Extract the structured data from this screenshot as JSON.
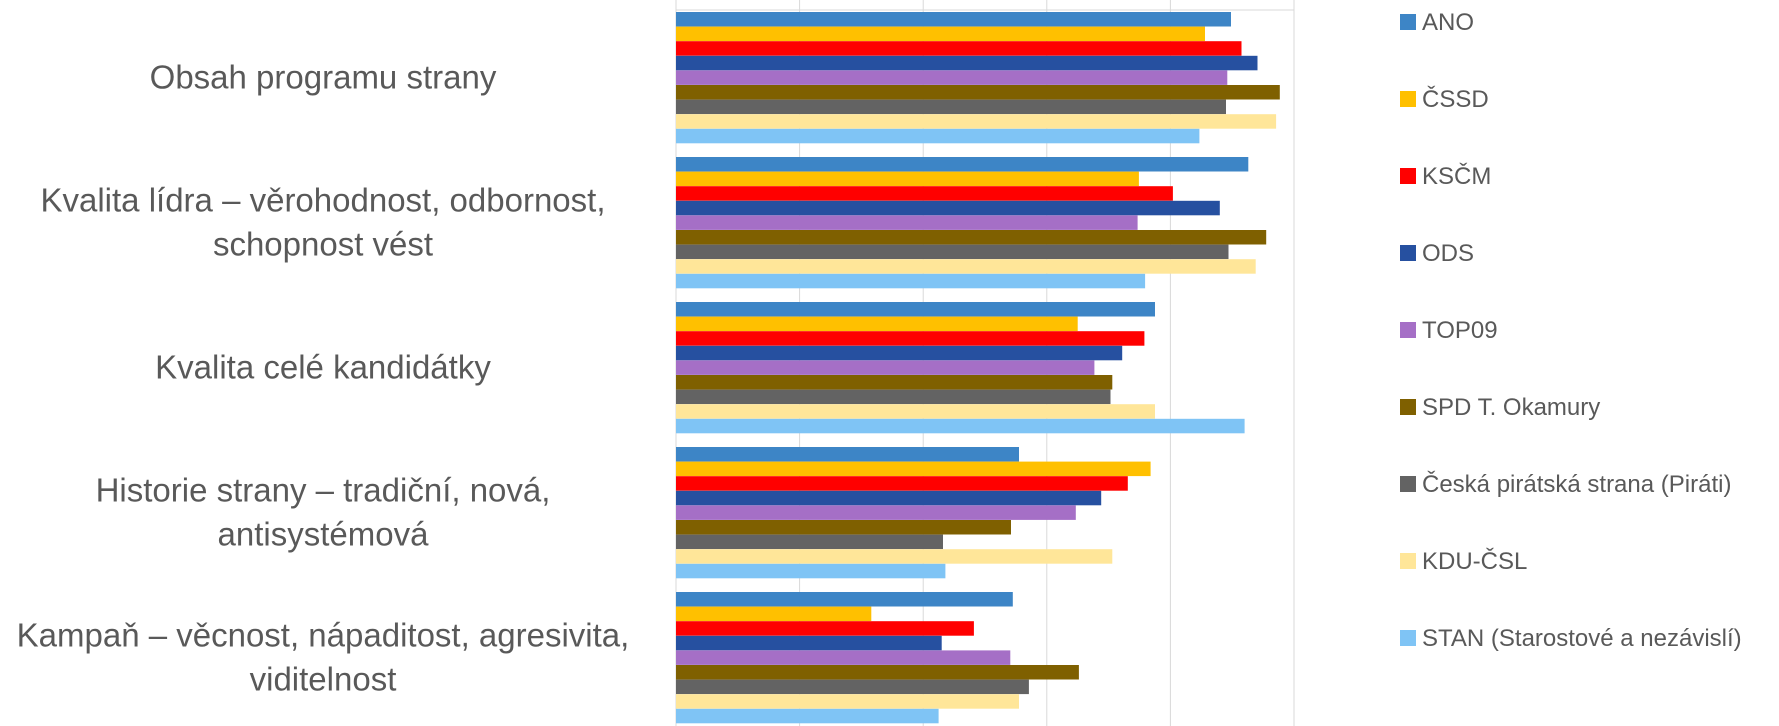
{
  "chart_data": {
    "type": "bar",
    "orientation": "horizontal",
    "xlim": [
      0,
      100
    ],
    "grid": true,
    "legend_position": "right",
    "categories": [
      [
        "Obsah programu strany"
      ],
      [
        "Kvalita lídra – věrohodnost, odbornost,",
        "schopnost vést"
      ],
      [
        "Kvalita celé kandidátky"
      ],
      [
        "Historie strany – tradiční, nová,",
        "antisystémová"
      ],
      [
        "Kampaň – věcnost, nápaditost, agresivita,",
        "viditelnost"
      ]
    ],
    "series": [
      {
        "name": "ANO",
        "color": "#3d85c6",
        "values": [
          89.8,
          92.6,
          77.5,
          55.5,
          54.5
        ]
      },
      {
        "name": "ČSSD",
        "color": "#ffc000",
        "values": [
          85.6,
          74.9,
          65.0,
          76.8,
          31.6
        ]
      },
      {
        "name": "KSČM",
        "color": "#ff0000",
        "values": [
          91.5,
          80.4,
          75.8,
          73.1,
          48.2
        ]
      },
      {
        "name": "ODS",
        "color": "#2650a0",
        "values": [
          94.1,
          88.0,
          72.2,
          68.8,
          43.0
        ]
      },
      {
        "name": "TOP09",
        "color": "#a56fc6",
        "values": [
          89.2,
          74.7,
          67.7,
          64.7,
          54.1
        ]
      },
      {
        "name": "SPD T. Okamury",
        "color": "#7f6000",
        "values": [
          97.7,
          95.5,
          70.6,
          54.2,
          65.2
        ]
      },
      {
        "name": "Česká pirátská strana (Piráti)",
        "color": "#636363",
        "values": [
          89.0,
          89.4,
          70.3,
          43.2,
          57.1
        ]
      },
      {
        "name": "KDU-ČSL",
        "color": "#ffe699",
        "values": [
          97.1,
          93.8,
          77.5,
          70.6,
          55.5
        ]
      },
      {
        "name": "STAN (Starostové a nezávislí)",
        "color": "#7fc4f5",
        "values": [
          84.7,
          75.9,
          92.0,
          43.6,
          42.5
        ]
      }
    ]
  }
}
